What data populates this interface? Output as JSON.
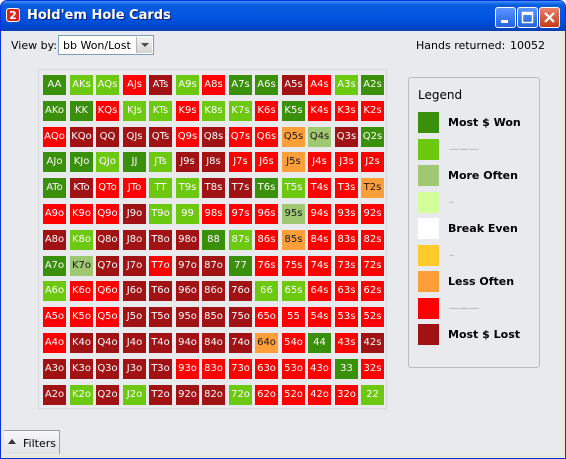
{
  "window": {
    "title": "Hold'em Hole Cards",
    "icon_glyph": "2"
  },
  "toolbar": {
    "view_by_label": "View by:",
    "view_by_value": "bb Won/Lost",
    "hands_label": "Hands returned:",
    "hands_value": "10052"
  },
  "colors": {
    "dg": "#3a8f0b",
    "lg": "#6cc90f",
    "ol": "#a0c873",
    "pg": "#d3ff9a",
    "wh": "#ffffff",
    "yl": "#ffca2c",
    "or": "#ff9f3a",
    "rd": "#ff0000",
    "dr": "#a01214"
  },
  "grid": {
    "rows": [
      [
        "AA",
        "AKs",
        "AQs",
        "AJs",
        "ATs",
        "A9s",
        "A8s",
        "A7s",
        "A6s",
        "A5s",
        "A4s",
        "A3s",
        "A2s"
      ],
      [
        "AKo",
        "KK",
        "KQs",
        "KJs",
        "KTs",
        "K9s",
        "K8s",
        "K7s",
        "K6s",
        "K5s",
        "K4s",
        "K3s",
        "K2s"
      ],
      [
        "AQo",
        "KQo",
        "QQ",
        "QJs",
        "QTs",
        "Q9s",
        "Q8s",
        "Q7s",
        "Q6s",
        "Q5s",
        "Q4s",
        "Q3s",
        "Q2s"
      ],
      [
        "AJo",
        "KJo",
        "QJo",
        "JJ",
        "JTs",
        "J9s",
        "J8s",
        "J7s",
        "J6s",
        "J5s",
        "J4s",
        "J3s",
        "J2s"
      ],
      [
        "ATo",
        "KTo",
        "QTo",
        "JTo",
        "TT",
        "T9s",
        "T8s",
        "T7s",
        "T6s",
        "T5s",
        "T4s",
        "T3s",
        "T2s"
      ],
      [
        "A9o",
        "K9o",
        "Q9o",
        "J9o",
        "T9o",
        "99",
        "98s",
        "97s",
        "96s",
        "95s",
        "94s",
        "93s",
        "92s"
      ],
      [
        "A8o",
        "K8o",
        "Q8o",
        "J8o",
        "T8o",
        "98o",
        "88",
        "87s",
        "86s",
        "85s",
        "84s",
        "83s",
        "82s"
      ],
      [
        "A7o",
        "K7o",
        "Q7o",
        "J7o",
        "T7o",
        "97o",
        "87o",
        "77",
        "76s",
        "75s",
        "74s",
        "73s",
        "72s"
      ],
      [
        "A6o",
        "K6o",
        "Q6o",
        "J6o",
        "T6o",
        "96o",
        "86o",
        "76o",
        "66",
        "65s",
        "64s",
        "63s",
        "62s"
      ],
      [
        "A5o",
        "K5o",
        "Q5o",
        "J5o",
        "T5o",
        "95o",
        "85o",
        "75o",
        "65o",
        "55",
        "54s",
        "53s",
        "52s"
      ],
      [
        "A4o",
        "K4o",
        "Q4o",
        "J4o",
        "T4o",
        "94o",
        "84o",
        "74o",
        "64o",
        "54o",
        "44",
        "43s",
        "42s"
      ],
      [
        "A3o",
        "K3o",
        "Q3o",
        "J3o",
        "T3o",
        "93o",
        "83o",
        "73o",
        "63o",
        "53o",
        "43o",
        "33",
        "32s"
      ],
      [
        "A2o",
        "K2o",
        "Q2o",
        "J2o",
        "T2o",
        "92o",
        "82o",
        "72o",
        "62o",
        "52o",
        "42o",
        "32o",
        "22"
      ]
    ],
    "shades": [
      [
        "dg",
        "lg",
        "lg",
        "rd",
        "dr",
        "lg",
        "rd",
        "dg",
        "dg",
        "dr",
        "rd",
        "lg",
        "dg"
      ],
      [
        "dg",
        "dg",
        "rd",
        "lg",
        "lg",
        "rd",
        "lg",
        "lg",
        "rd",
        "dg",
        "rd",
        "rd",
        "rd"
      ],
      [
        "rd",
        "dr",
        "dr",
        "dr",
        "dr",
        "rd",
        "dr",
        "rd",
        "rd",
        "or",
        "ol",
        "dr",
        "dg"
      ],
      [
        "dg",
        "dg",
        "lg",
        "dg",
        "lg",
        "dr",
        "dr",
        "rd",
        "rd",
        "or",
        "rd",
        "rd",
        "rd"
      ],
      [
        "dg",
        "dr",
        "rd",
        "rd",
        "lg",
        "lg",
        "dr",
        "dr",
        "dg",
        "lg",
        "rd",
        "rd",
        "or"
      ],
      [
        "rd",
        "rd",
        "rd",
        "dr",
        "lg",
        "lg",
        "rd",
        "rd",
        "rd",
        "ol",
        "rd",
        "rd",
        "rd"
      ],
      [
        "dr",
        "lg",
        "dr",
        "dr",
        "dr",
        "dr",
        "dg",
        "lg",
        "rd",
        "or",
        "rd",
        "rd",
        "rd"
      ],
      [
        "dg",
        "ol",
        "dr",
        "dr",
        "rd",
        "dr",
        "dr",
        "dg",
        "rd",
        "rd",
        "rd",
        "rd",
        "rd"
      ],
      [
        "lg",
        "rd",
        "rd",
        "dr",
        "dr",
        "dr",
        "dr",
        "dr",
        "lg",
        "lg",
        "rd",
        "rd",
        "rd"
      ],
      [
        "rd",
        "rd",
        "rd",
        "dr",
        "dr",
        "dr",
        "dr",
        "dr",
        "rd",
        "rd",
        "rd",
        "rd",
        "rd"
      ],
      [
        "rd",
        "dr",
        "dr",
        "dr",
        "dr",
        "dr",
        "dr",
        "dr",
        "or",
        "rd",
        "dg",
        "rd",
        "dr"
      ],
      [
        "dr",
        "dr",
        "dr",
        "dr",
        "dr",
        "rd",
        "rd",
        "rd",
        "rd",
        "rd",
        "rd",
        "dg",
        "rd"
      ],
      [
        "dr",
        "lg",
        "dr",
        "lg",
        "dr",
        "dr",
        "dr",
        "lg",
        "rd",
        "rd",
        "rd",
        "rd",
        "lg"
      ]
    ]
  },
  "legend": {
    "title": "Legend",
    "items": [
      {
        "shade": "dg",
        "label": "Most $ Won"
      },
      {
        "shade": "lg",
        "label": "———"
      },
      {
        "shade": "ol",
        "label": "More Often"
      },
      {
        "shade": "pg",
        "label": "–"
      },
      {
        "shade": "wh",
        "label": "Break Even"
      },
      {
        "shade": "yl",
        "label": "–"
      },
      {
        "shade": "or",
        "label": "Less Often"
      },
      {
        "shade": "rd",
        "label": "———"
      },
      {
        "shade": "dr",
        "label": "Most $ Lost"
      }
    ]
  },
  "footer": {
    "filters_label": "Filters"
  }
}
